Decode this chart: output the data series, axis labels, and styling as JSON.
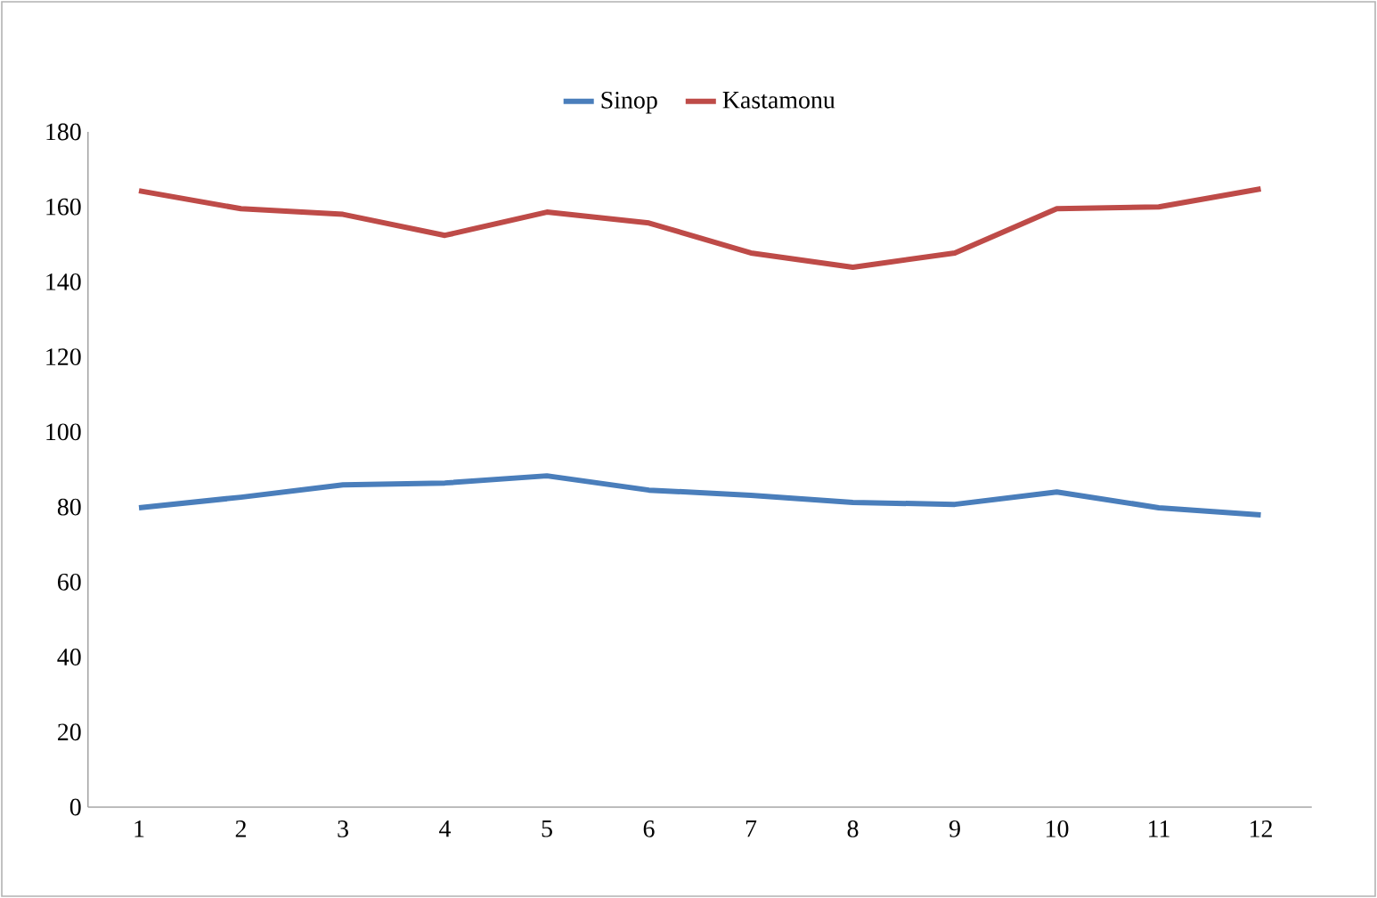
{
  "chart_data": {
    "type": "line",
    "categories": [
      "1",
      "2",
      "3",
      "4",
      "5",
      "6",
      "7",
      "8",
      "9",
      "10",
      "11",
      "12"
    ],
    "series": [
      {
        "name": "Sinop",
        "color": "#4a7ebb",
        "values": [
          79.8,
          82.6,
          85.9,
          86.4,
          88.3,
          84.5,
          83.1,
          81.2,
          80.7,
          84.0,
          79.8,
          77.9
        ]
      },
      {
        "name": "Kastamonu",
        "color": "#be4b48",
        "values": [
          164.3,
          159.5,
          158.0,
          152.4,
          158.6,
          155.7,
          147.7,
          143.9,
          147.7,
          159.5,
          160.0,
          164.8
        ]
      }
    ],
    "ylim": [
      0,
      180
    ],
    "yticks": [
      0,
      20,
      40,
      60,
      80,
      100,
      120,
      140,
      160,
      180
    ],
    "grid": false,
    "legend": "top",
    "marker": "none",
    "line_style": "solid"
  }
}
